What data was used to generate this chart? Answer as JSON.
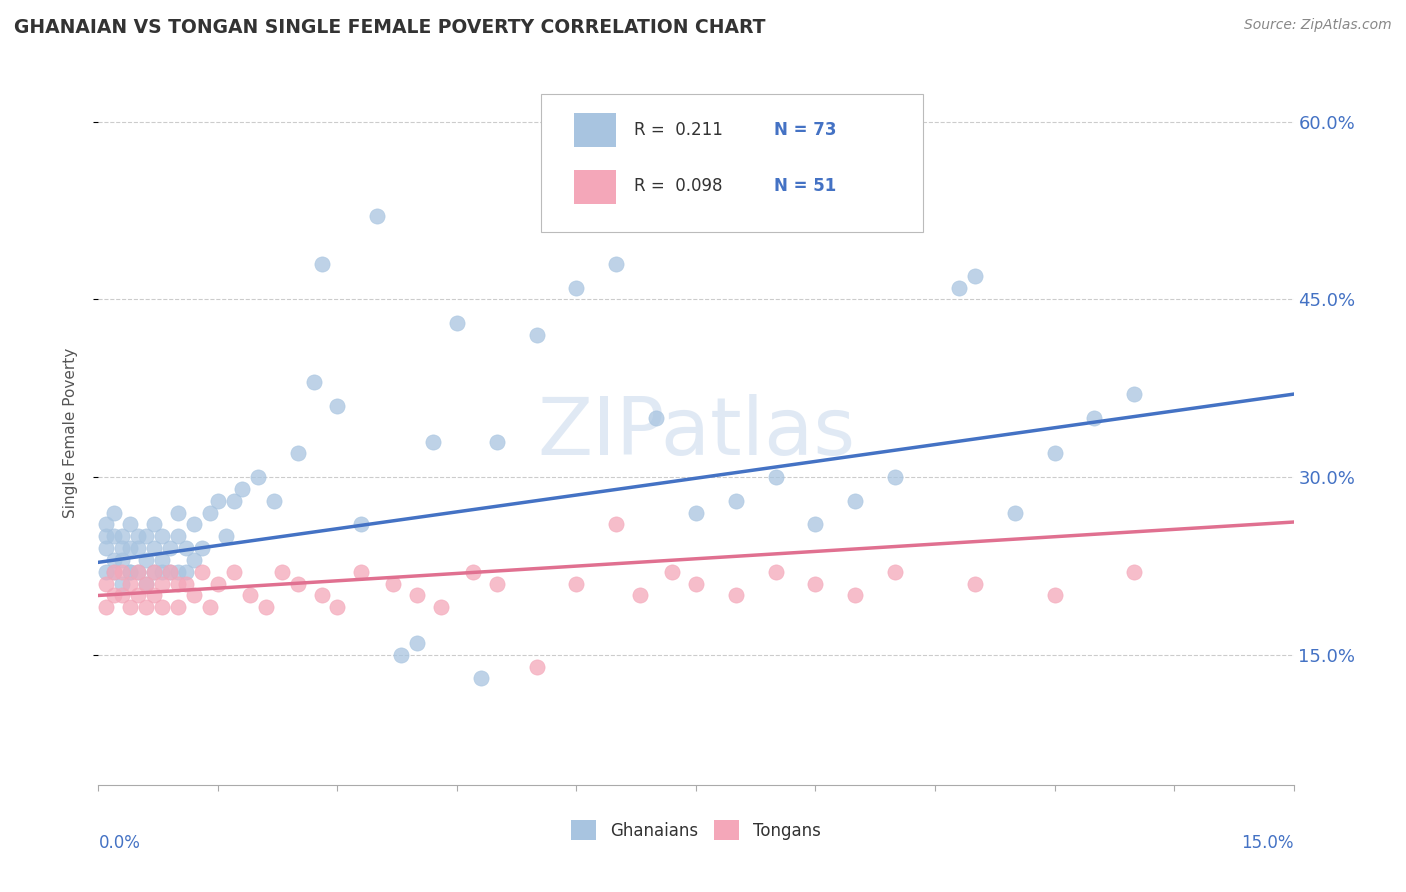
{
  "title": "GHANAIAN VS TONGAN SINGLE FEMALE POVERTY CORRELATION CHART",
  "source": "Source: ZipAtlas.com",
  "ylabel": "Single Female Poverty",
  "xlim": [
    0.0,
    0.15
  ],
  "ylim": [
    0.04,
    0.635
  ],
  "yticks": [
    0.15,
    0.3,
    0.45,
    0.6
  ],
  "ytick_labels": [
    "15.0%",
    "30.0%",
    "45.0%",
    "60.0%"
  ],
  "watermark": "ZIPatlas",
  "ghanaian_color": "#a8c4e0",
  "tongan_color": "#f4a7b9",
  "ghanaian_line_color": "#4472c4",
  "tongan_line_color": "#e07090",
  "R_ghana": 0.211,
  "N_ghana": 73,
  "R_tonga": 0.098,
  "N_tonga": 51,
  "blue_line_x": [
    0.0,
    0.15
  ],
  "blue_line_y": [
    0.228,
    0.37
  ],
  "pink_line_x": [
    0.0,
    0.15
  ],
  "pink_line_y": [
    0.2,
    0.262
  ],
  "ghana_x": [
    0.001,
    0.001,
    0.001,
    0.001,
    0.002,
    0.002,
    0.002,
    0.002,
    0.003,
    0.003,
    0.003,
    0.003,
    0.004,
    0.004,
    0.004,
    0.004,
    0.005,
    0.005,
    0.005,
    0.006,
    0.006,
    0.006,
    0.007,
    0.007,
    0.007,
    0.008,
    0.008,
    0.008,
    0.009,
    0.009,
    0.01,
    0.01,
    0.01,
    0.011,
    0.011,
    0.012,
    0.012,
    0.013,
    0.014,
    0.015,
    0.016,
    0.017,
    0.018,
    0.02,
    0.022,
    0.025,
    0.027,
    0.028,
    0.03,
    0.033,
    0.035,
    0.038,
    0.04,
    0.042,
    0.045,
    0.048,
    0.05,
    0.055,
    0.06,
    0.065,
    0.07,
    0.075,
    0.08,
    0.085,
    0.09,
    0.095,
    0.1,
    0.108,
    0.11,
    0.115,
    0.12,
    0.125,
    0.13
  ],
  "ghana_y": [
    0.24,
    0.26,
    0.22,
    0.25,
    0.23,
    0.25,
    0.27,
    0.22,
    0.25,
    0.23,
    0.21,
    0.24,
    0.22,
    0.24,
    0.26,
    0.22,
    0.25,
    0.22,
    0.24,
    0.23,
    0.25,
    0.21,
    0.24,
    0.26,
    0.22,
    0.23,
    0.25,
    0.22,
    0.24,
    0.22,
    0.25,
    0.27,
    0.22,
    0.24,
    0.22,
    0.26,
    0.23,
    0.24,
    0.27,
    0.28,
    0.25,
    0.28,
    0.29,
    0.3,
    0.28,
    0.32,
    0.38,
    0.48,
    0.36,
    0.26,
    0.52,
    0.15,
    0.16,
    0.33,
    0.43,
    0.13,
    0.33,
    0.42,
    0.46,
    0.48,
    0.35,
    0.27,
    0.28,
    0.3,
    0.26,
    0.28,
    0.3,
    0.46,
    0.47,
    0.27,
    0.32,
    0.35,
    0.37
  ],
  "tonga_x": [
    0.001,
    0.001,
    0.002,
    0.002,
    0.003,
    0.003,
    0.004,
    0.004,
    0.005,
    0.005,
    0.006,
    0.006,
    0.007,
    0.007,
    0.008,
    0.008,
    0.009,
    0.01,
    0.01,
    0.011,
    0.012,
    0.013,
    0.014,
    0.015,
    0.017,
    0.019,
    0.021,
    0.023,
    0.025,
    0.028,
    0.03,
    0.033,
    0.037,
    0.04,
    0.043,
    0.047,
    0.05,
    0.055,
    0.06,
    0.065,
    0.068,
    0.072,
    0.075,
    0.08,
    0.085,
    0.09,
    0.095,
    0.1,
    0.11,
    0.12,
    0.13
  ],
  "tonga_y": [
    0.21,
    0.19,
    0.22,
    0.2,
    0.2,
    0.22,
    0.19,
    0.21,
    0.2,
    0.22,
    0.21,
    0.19,
    0.22,
    0.2,
    0.21,
    0.19,
    0.22,
    0.21,
    0.19,
    0.21,
    0.2,
    0.22,
    0.19,
    0.21,
    0.22,
    0.2,
    0.19,
    0.22,
    0.21,
    0.2,
    0.19,
    0.22,
    0.21,
    0.2,
    0.19,
    0.22,
    0.21,
    0.14,
    0.21,
    0.26,
    0.2,
    0.22,
    0.21,
    0.2,
    0.22,
    0.21,
    0.2,
    0.22,
    0.21,
    0.2,
    0.22
  ]
}
